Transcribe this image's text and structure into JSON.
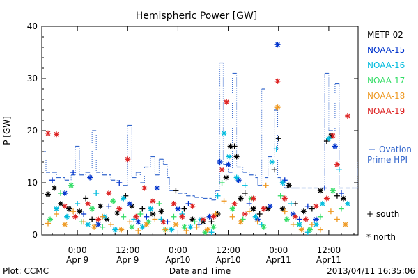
{
  "chart_data": {
    "type": "scatter",
    "title": "Hemispheric Power [GW]",
    "ylabel": "P [GW]",
    "xlabel": "Date and Time",
    "ylim": [
      0,
      40
    ],
    "xlim": [
      -8.5,
      67
    ],
    "yticks": [
      0,
      10,
      20,
      30,
      40
    ],
    "xticks": [
      {
        "x": 0,
        "line1": "0:00",
        "line2": "Apr 9"
      },
      {
        "x": 12,
        "line1": "12:00",
        "line2": "Apr 9"
      },
      {
        "x": 24,
        "line1": "0:00",
        "line2": "Apr10"
      },
      {
        "x": 36,
        "line1": "12:00",
        "line2": "Apr10"
      },
      {
        "x": 48,
        "line1": "0:00",
        "line2": "Apr11"
      },
      {
        "x": 60,
        "line1": "12:00",
        "line2": "Apr11"
      }
    ],
    "footer_left": "Plot: CCMC",
    "footer_right": "2013/04/11 16:35:06",
    "marker_legend": {
      "south": "+ south",
      "north": "* north"
    },
    "ovation": {
      "label_line1": "Ovation",
      "label_line2": "Prime HPI",
      "color": "#3366cc",
      "steps": [
        [
          -8,
          16
        ],
        [
          -7.5,
          12
        ],
        [
          -5,
          11
        ],
        [
          -3,
          10.5
        ],
        [
          -1.5,
          11.5
        ],
        [
          -0.5,
          17
        ],
        [
          0.5,
          11.5
        ],
        [
          2,
          12
        ],
        [
          3.5,
          20
        ],
        [
          4.5,
          12
        ],
        [
          6,
          11.5
        ],
        [
          8,
          10.5
        ],
        [
          9.5,
          10
        ],
        [
          11,
          9.5
        ],
        [
          12,
          21
        ],
        [
          13,
          11
        ],
        [
          14,
          12
        ],
        [
          15,
          10
        ],
        [
          16,
          13
        ],
        [
          17.5,
          15
        ],
        [
          18.5,
          11.5
        ],
        [
          19.5,
          14.5
        ],
        [
          20.5,
          13.5
        ],
        [
          21.5,
          11
        ],
        [
          22,
          8.5
        ],
        [
          24,
          8
        ],
        [
          26,
          7.5
        ],
        [
          28,
          7.2
        ],
        [
          30,
          7
        ],
        [
          32,
          6.7
        ],
        [
          33,
          8.5
        ],
        [
          34,
          33
        ],
        [
          34.8,
          13.5
        ],
        [
          36,
          12
        ],
        [
          37,
          31
        ],
        [
          38,
          13
        ],
        [
          39.5,
          12
        ],
        [
          41,
          11.5
        ],
        [
          42.5,
          11
        ],
        [
          43,
          9.5
        ],
        [
          44,
          28
        ],
        [
          44.8,
          11
        ],
        [
          45.5,
          15
        ],
        [
          47,
          24
        ],
        [
          47.8,
          11
        ],
        [
          48.5,
          10
        ],
        [
          49.5,
          9
        ],
        [
          52,
          9
        ],
        [
          55,
          9
        ],
        [
          58,
          9
        ],
        [
          59,
          31
        ],
        [
          60,
          20
        ],
        [
          61.5,
          29
        ],
        [
          62.5,
          9
        ],
        [
          64,
          9
        ],
        [
          66,
          9
        ],
        [
          67,
          14
        ]
      ]
    },
    "series": [
      {
        "name": "METP-02",
        "color": "#000000",
        "points": [
          [
            -7,
            7.8,
            "*"
          ],
          [
            -5.5,
            9,
            "*"
          ],
          [
            -4,
            6,
            "*"
          ],
          [
            -2,
            5,
            "*"
          ],
          [
            0.5,
            4.5,
            "*"
          ],
          [
            2,
            7,
            "+"
          ],
          [
            3.5,
            3,
            "+"
          ],
          [
            5.5,
            5.5,
            "*"
          ],
          [
            7,
            3,
            "*"
          ],
          [
            9.5,
            4.2,
            "*"
          ],
          [
            11.5,
            7.5,
            "+"
          ],
          [
            13,
            5.5,
            "*"
          ],
          [
            15.5,
            5,
            "+"
          ],
          [
            18,
            4,
            "*"
          ],
          [
            20,
            4.5,
            "*"
          ],
          [
            23.5,
            8.5,
            "+"
          ],
          [
            25.5,
            5,
            "+"
          ],
          [
            27.5,
            3,
            "*"
          ],
          [
            30,
            2.5,
            "*"
          ],
          [
            32,
            2.5,
            "+"
          ],
          [
            33.5,
            4,
            "*"
          ],
          [
            35.5,
            11,
            "*"
          ],
          [
            36.5,
            17,
            "*"
          ],
          [
            37.5,
            17,
            "+"
          ],
          [
            38,
            15,
            "*"
          ],
          [
            39,
            7,
            "*"
          ],
          [
            40,
            8,
            "+"
          ],
          [
            42,
            5,
            "*"
          ],
          [
            43.5,
            4,
            "+"
          ],
          [
            45.5,
            5,
            "*"
          ],
          [
            47,
            12.5,
            "+"
          ],
          [
            48,
            18.5,
            "+"
          ],
          [
            49,
            5,
            "*"
          ],
          [
            50.5,
            9.5,
            "*"
          ],
          [
            52,
            6,
            "+"
          ],
          [
            54,
            4.5,
            "*"
          ],
          [
            56,
            5,
            "+"
          ],
          [
            58,
            8.5,
            "*"
          ],
          [
            59.5,
            18,
            "+"
          ],
          [
            60.5,
            19,
            "*"
          ],
          [
            62,
            7.5,
            "+"
          ],
          [
            63.5,
            7,
            "*"
          ]
        ]
      },
      {
        "name": "NOAA-15",
        "color": "#0033cc",
        "points": [
          [
            -6,
            10.5,
            "+"
          ],
          [
            -3,
            8,
            "*"
          ],
          [
            -1,
            12,
            "+"
          ],
          [
            1.5,
            4,
            "+"
          ],
          [
            3,
            11,
            "*"
          ],
          [
            5,
            2,
            "*"
          ],
          [
            7.5,
            5.5,
            "+"
          ],
          [
            10,
            10,
            "+"
          ],
          [
            12.5,
            6,
            "*"
          ],
          [
            14.5,
            2.5,
            "*"
          ],
          [
            16.5,
            3.5,
            "+"
          ],
          [
            19,
            9,
            "*"
          ],
          [
            21.5,
            2.5,
            "+"
          ],
          [
            24,
            5,
            "*"
          ],
          [
            26.5,
            6,
            "+"
          ],
          [
            29,
            2,
            "+"
          ],
          [
            31.5,
            3.5,
            "*"
          ],
          [
            34,
            14,
            "*"
          ],
          [
            36,
            13.5,
            "*"
          ],
          [
            38.5,
            10.5,
            "*"
          ],
          [
            41,
            6,
            "+"
          ],
          [
            43,
            3,
            "*"
          ],
          [
            46,
            5.5,
            "*"
          ],
          [
            47.8,
            36.5,
            "*"
          ],
          [
            49.5,
            10.5,
            "+"
          ],
          [
            51.5,
            4,
            "*"
          ],
          [
            53,
            3,
            "+"
          ],
          [
            55,
            5.5,
            "+"
          ],
          [
            57,
            3,
            "*"
          ],
          [
            59,
            9,
            "+"
          ],
          [
            61.5,
            17,
            "*"
          ],
          [
            63,
            8,
            "+"
          ]
        ]
      },
      {
        "name": "NOAA-16",
        "color": "#00bbdd",
        "points": [
          [
            -5,
            5,
            "*"
          ],
          [
            -2.5,
            3.5,
            "*"
          ],
          [
            0,
            6,
            "+"
          ],
          [
            2.5,
            2,
            "*"
          ],
          [
            4.5,
            8,
            "+"
          ],
          [
            6.5,
            3.5,
            "*"
          ],
          [
            9,
            1,
            "*"
          ],
          [
            11,
            7,
            "*"
          ],
          [
            13.5,
            3,
            "+"
          ],
          [
            15.5,
            1.5,
            "*"
          ],
          [
            17.5,
            5,
            "*"
          ],
          [
            20,
            3,
            "+"
          ],
          [
            22.5,
            1,
            "*"
          ],
          [
            25,
            4,
            "+"
          ],
          [
            27,
            1.5,
            "*"
          ],
          [
            29.5,
            3,
            "*"
          ],
          [
            32,
            0.5,
            "+"
          ],
          [
            33.5,
            7.5,
            "+"
          ],
          [
            35,
            19.5,
            "*"
          ],
          [
            36.2,
            15,
            "*"
          ],
          [
            38,
            11,
            "*"
          ],
          [
            40,
            9.5,
            "+"
          ],
          [
            42.5,
            3.5,
            "*"
          ],
          [
            44,
            2,
            "+"
          ],
          [
            46.5,
            14,
            "*"
          ],
          [
            47.5,
            16.5,
            "+"
          ],
          [
            49,
            10,
            "*"
          ],
          [
            51,
            6,
            "+"
          ],
          [
            53,
            2,
            "*"
          ],
          [
            55,
            0.5,
            "+"
          ],
          [
            57,
            2,
            "*"
          ],
          [
            58.5,
            6,
            "*"
          ],
          [
            60,
            18.5,
            "*"
          ],
          [
            62.5,
            12.5,
            "+"
          ],
          [
            64.5,
            6,
            "*"
          ]
        ]
      },
      {
        "name": "NOAA-17",
        "color": "#33dd66",
        "points": [
          [
            -6.5,
            3,
            "*"
          ],
          [
            -4,
            8,
            "+"
          ],
          [
            -1.5,
            9.5,
            "*"
          ],
          [
            1,
            2.5,
            "+"
          ],
          [
            3.5,
            5,
            "*"
          ],
          [
            6,
            1.5,
            "+"
          ],
          [
            8.5,
            6.5,
            "*"
          ],
          [
            11,
            3.5,
            "+"
          ],
          [
            13,
            1.5,
            "*"
          ],
          [
            15,
            4,
            "+"
          ],
          [
            17,
            2.5,
            "*"
          ],
          [
            19.5,
            6,
            "+"
          ],
          [
            21,
            1,
            "*"
          ],
          [
            23,
            3.5,
            "+"
          ],
          [
            25.5,
            1.5,
            "*"
          ],
          [
            28,
            2.5,
            "+"
          ],
          [
            30.5,
            0.5,
            "*"
          ],
          [
            32.5,
            1.5,
            "*"
          ],
          [
            34.5,
            10,
            "+"
          ],
          [
            37,
            5,
            "*"
          ],
          [
            39.5,
            3,
            "+"
          ],
          [
            41.5,
            7,
            "*"
          ],
          [
            44.5,
            1.5,
            "*"
          ],
          [
            48.5,
            7.5,
            "+"
          ],
          [
            50,
            3,
            "*"
          ],
          [
            52.5,
            2,
            "+"
          ],
          [
            55.5,
            1,
            "*"
          ],
          [
            58,
            3.5,
            "+"
          ],
          [
            61,
            8.5,
            "*"
          ],
          [
            63,
            5,
            "+"
          ]
        ]
      },
      {
        "name": "NOAA-18",
        "color": "#ee9922",
        "points": [
          [
            -7,
            2.2,
            "+"
          ],
          [
            -5,
            4,
            "+"
          ],
          [
            -3,
            2,
            "*"
          ],
          [
            -1,
            4.5,
            "+"
          ],
          [
            1.5,
            2.5,
            "+"
          ],
          [
            4,
            1.5,
            "*"
          ],
          [
            6,
            3.5,
            "+"
          ],
          [
            8,
            2,
            "+"
          ],
          [
            10.5,
            1,
            "*"
          ],
          [
            12.5,
            2.5,
            "+"
          ],
          [
            14.5,
            0.8,
            "+"
          ],
          [
            16.5,
            2,
            "*"
          ],
          [
            18.5,
            3,
            "+"
          ],
          [
            21,
            1,
            "+"
          ],
          [
            23.5,
            2,
            "*"
          ],
          [
            26,
            0.8,
            "+"
          ],
          [
            28.5,
            1.5,
            "+"
          ],
          [
            31,
            1,
            "*"
          ],
          [
            33,
            4,
            "+"
          ],
          [
            35,
            6.5,
            "+"
          ],
          [
            37,
            3.5,
            "+"
          ],
          [
            39,
            2.5,
            "*"
          ],
          [
            41,
            4.5,
            "+"
          ],
          [
            43,
            2.5,
            "+"
          ],
          [
            45,
            9.5,
            "+"
          ],
          [
            47.8,
            24.5,
            "*"
          ],
          [
            49.5,
            4.5,
            "+"
          ],
          [
            51.5,
            2,
            "+"
          ],
          [
            53.5,
            1,
            "*"
          ],
          [
            56,
            2,
            "+"
          ],
          [
            58,
            1,
            "+"
          ],
          [
            60.5,
            4.5,
            "+"
          ],
          [
            62,
            3,
            "+"
          ],
          [
            64,
            2,
            "*"
          ]
        ]
      },
      {
        "name": "NOAA-19",
        "color": "#dd2222",
        "points": [
          [
            -7,
            19.5,
            "*"
          ],
          [
            -5,
            19.3,
            "*"
          ],
          [
            -3,
            5.5,
            "*"
          ],
          [
            -0.5,
            3.5,
            "*"
          ],
          [
            2.5,
            6,
            "*"
          ],
          [
            5,
            3,
            "*"
          ],
          [
            7.5,
            8,
            "*"
          ],
          [
            10,
            5,
            "*"
          ],
          [
            12,
            14.5,
            "*"
          ],
          [
            14,
            3.5,
            "*"
          ],
          [
            16,
            9,
            "*"
          ],
          [
            18,
            6.5,
            "*"
          ],
          [
            20.5,
            2.5,
            "*"
          ],
          [
            23,
            6,
            "*"
          ],
          [
            25,
            3.5,
            "*"
          ],
          [
            27.5,
            5.5,
            "*"
          ],
          [
            30,
            3,
            "*"
          ],
          [
            32.5,
            3.5,
            "*"
          ],
          [
            34.5,
            12.5,
            "*"
          ],
          [
            35.6,
            25.5,
            "*"
          ],
          [
            37.5,
            6,
            "*"
          ],
          [
            40,
            4,
            "*"
          ],
          [
            42,
            7,
            "*"
          ],
          [
            44.5,
            5,
            "*"
          ],
          [
            47.8,
            29.5,
            "*"
          ],
          [
            49.5,
            7,
            "*"
          ],
          [
            52,
            3.5,
            "*"
          ],
          [
            54.5,
            3,
            "*"
          ],
          [
            57,
            5.5,
            "*"
          ],
          [
            59.5,
            7,
            "*"
          ],
          [
            61,
            19,
            "*"
          ],
          [
            62,
            13.5,
            "*"
          ],
          [
            64.5,
            22.8,
            "*"
          ]
        ]
      }
    ]
  }
}
